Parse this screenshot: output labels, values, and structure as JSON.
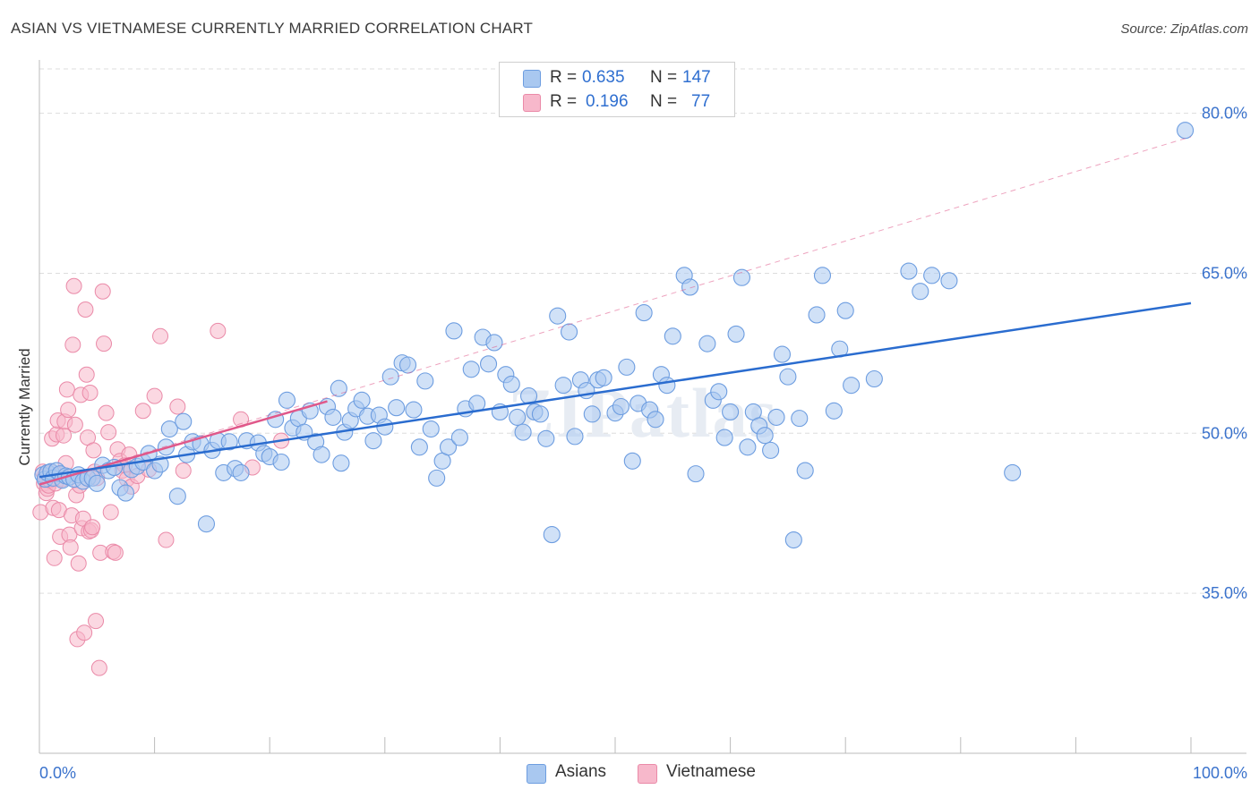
{
  "title": "ASIAN VS VIETNAMESE CURRENTLY MARRIED CORRELATION CHART",
  "source": "Source: ZipAtlas.com",
  "watermark": "ZIPatlas",
  "legend_top": {
    "asians": {
      "r_label": "R =",
      "r_value": "0.635",
      "n_label": "N =",
      "n_value": "147"
    },
    "vietnamese": {
      "r_label": "R =",
      "r_value": "0.196",
      "n_label": "N =",
      "n_value": "77"
    }
  },
  "legend_bottom": {
    "asians": "Asians",
    "vietnamese": "Vietnamese"
  },
  "colors": {
    "asians_fill": "#a9c8f0",
    "asians_stroke": "#6d9de0",
    "asians_line": "#2a6ccf",
    "vietnamese_fill": "#f7b8cb",
    "vietnamese_stroke": "#ea8aa8",
    "vietnamese_line": "#e0588a",
    "axis_text": "#3a72cc",
    "grid": "#dddddd"
  },
  "chart_data": {
    "type": "scatter",
    "title": "ASIAN VS VIETNAMESE CURRENTLY MARRIED CORRELATION CHART",
    "xlabel": "",
    "ylabel": "Currently Married",
    "xlim": [
      0,
      100
    ],
    "ylim": [
      20,
      85
    ],
    "x_tick_labels": [
      "0.0%",
      "100.0%"
    ],
    "y_ticks": [
      35,
      50,
      65,
      80
    ],
    "y_tick_labels": [
      "35.0%",
      "50.0%",
      "65.0%",
      "80.0%"
    ],
    "grid": true,
    "legend_position": "top-center",
    "series": [
      {
        "name": "Asians",
        "r": 0.635,
        "n": 147,
        "trend": {
          "x": [
            0,
            100
          ],
          "y": [
            45.9,
            62.2
          ]
        },
        "points": [
          [
            0.3,
            46.1
          ],
          [
            0.5,
            45.7
          ],
          [
            0.7,
            46.3
          ],
          [
            1.0,
            46.4
          ],
          [
            1.2,
            45.8
          ],
          [
            1.5,
            46.5
          ],
          [
            1.8,
            46.2
          ],
          [
            2.0,
            45.6
          ],
          [
            2.3,
            46.0
          ],
          [
            2.6,
            45.9
          ],
          [
            3.0,
            45.7
          ],
          [
            3.4,
            46.1
          ],
          [
            3.8,
            45.5
          ],
          [
            4.2,
            45.8
          ],
          [
            4.6,
            45.8
          ],
          [
            5.0,
            45.3
          ],
          [
            5.5,
            47.0
          ],
          [
            6.0,
            46.5
          ],
          [
            6.5,
            46.8
          ],
          [
            7.0,
            44.9
          ],
          [
            7.5,
            44.4
          ],
          [
            8.0,
            46.6
          ],
          [
            8.5,
            46.9
          ],
          [
            9.0,
            47.3
          ],
          [
            9.5,
            48.1
          ],
          [
            10.0,
            46.5
          ],
          [
            10.5,
            47.1
          ],
          [
            11.0,
            48.7
          ],
          [
            11.3,
            50.4
          ],
          [
            12.0,
            44.1
          ],
          [
            12.5,
            51.1
          ],
          [
            12.8,
            48.0
          ],
          [
            13.3,
            49.2
          ],
          [
            14.0,
            49.0
          ],
          [
            14.5,
            41.5
          ],
          [
            15.0,
            48.4
          ],
          [
            15.5,
            49.3
          ],
          [
            16.0,
            46.3
          ],
          [
            16.5,
            49.2
          ],
          [
            17.0,
            46.7
          ],
          [
            17.5,
            46.3
          ],
          [
            18.0,
            49.3
          ],
          [
            19.0,
            49.1
          ],
          [
            19.5,
            48.1
          ],
          [
            20.0,
            47.8
          ],
          [
            20.5,
            51.3
          ],
          [
            21.0,
            47.3
          ],
          [
            21.5,
            53.1
          ],
          [
            22.0,
            50.5
          ],
          [
            22.5,
            51.4
          ],
          [
            23.0,
            50.1
          ],
          [
            23.5,
            52.1
          ],
          [
            24.0,
            49.2
          ],
          [
            24.5,
            48.0
          ],
          [
            25.0,
            52.5
          ],
          [
            25.5,
            51.5
          ],
          [
            26.0,
            54.2
          ],
          [
            26.2,
            47.2
          ],
          [
            26.5,
            50.1
          ],
          [
            27.0,
            51.2
          ],
          [
            27.5,
            52.3
          ],
          [
            28.0,
            53.1
          ],
          [
            28.5,
            51.6
          ],
          [
            29.0,
            49.3
          ],
          [
            29.5,
            51.7
          ],
          [
            30.0,
            50.6
          ],
          [
            30.5,
            55.3
          ],
          [
            31.0,
            52.4
          ],
          [
            31.5,
            56.6
          ],
          [
            32.0,
            56.4
          ],
          [
            32.5,
            52.2
          ],
          [
            33.0,
            48.7
          ],
          [
            33.5,
            54.9
          ],
          [
            34.0,
            50.4
          ],
          [
            34.5,
            45.8
          ],
          [
            35.0,
            47.4
          ],
          [
            35.5,
            48.7
          ],
          [
            36.0,
            59.6
          ],
          [
            36.5,
            49.6
          ],
          [
            37.0,
            52.3
          ],
          [
            37.5,
            56.0
          ],
          [
            38.0,
            52.8
          ],
          [
            38.5,
            59.0
          ],
          [
            39.0,
            56.5
          ],
          [
            39.5,
            58.5
          ],
          [
            40.0,
            52.0
          ],
          [
            40.5,
            55.5
          ],
          [
            41.0,
            54.6
          ],
          [
            41.5,
            51.5
          ],
          [
            42.0,
            50.1
          ],
          [
            42.5,
            53.5
          ],
          [
            43.0,
            52.0
          ],
          [
            43.5,
            51.8
          ],
          [
            44.0,
            49.5
          ],
          [
            44.5,
            40.5
          ],
          [
            45.0,
            61.0
          ],
          [
            45.5,
            54.5
          ],
          [
            46.0,
            59.5
          ],
          [
            46.5,
            49.7
          ],
          [
            47.0,
            55.0
          ],
          [
            47.5,
            54.0
          ],
          [
            48.0,
            51.8
          ],
          [
            48.5,
            55.0
          ],
          [
            49.0,
            55.2
          ],
          [
            50.0,
            51.9
          ],
          [
            50.5,
            52.5
          ],
          [
            51.0,
            56.2
          ],
          [
            51.5,
            47.4
          ],
          [
            52.0,
            52.8
          ],
          [
            52.5,
            61.3
          ],
          [
            53.0,
            52.2
          ],
          [
            53.5,
            51.3
          ],
          [
            54.0,
            55.5
          ],
          [
            54.5,
            54.5
          ],
          [
            55.0,
            59.1
          ],
          [
            56.0,
            64.8
          ],
          [
            56.5,
            63.7
          ],
          [
            57.0,
            46.2
          ],
          [
            58.0,
            58.4
          ],
          [
            58.5,
            53.1
          ],
          [
            59.0,
            53.9
          ],
          [
            59.5,
            49.6
          ],
          [
            60.0,
            52.0
          ],
          [
            60.5,
            59.3
          ],
          [
            61.0,
            64.6
          ],
          [
            61.5,
            48.7
          ],
          [
            62.0,
            52.0
          ],
          [
            62.5,
            50.7
          ],
          [
            63.0,
            49.8
          ],
          [
            63.5,
            48.4
          ],
          [
            64.0,
            51.5
          ],
          [
            64.5,
            57.4
          ],
          [
            65.0,
            55.3
          ],
          [
            65.5,
            40.0
          ],
          [
            66.0,
            51.4
          ],
          [
            66.5,
            46.5
          ],
          [
            67.5,
            61.1
          ],
          [
            68.0,
            64.8
          ],
          [
            69.0,
            52.1
          ],
          [
            69.5,
            57.9
          ],
          [
            70.0,
            61.5
          ],
          [
            70.5,
            54.5
          ],
          [
            72.5,
            55.1
          ],
          [
            75.5,
            65.2
          ],
          [
            76.5,
            63.3
          ],
          [
            77.5,
            64.8
          ],
          [
            79.0,
            64.3
          ],
          [
            84.5,
            46.3
          ],
          [
            99.5,
            78.4
          ]
        ]
      },
      {
        "name": "Vietnamese",
        "r": 0.196,
        "n": 77,
        "trend": {
          "x": [
            0,
            25
          ],
          "y": [
            45.2,
            53.0
          ]
        },
        "dashed_extension": {
          "x": [
            0,
            100
          ],
          "y": [
            45.2,
            77.8
          ]
        },
        "points": [
          [
            0.1,
            42.6
          ],
          [
            0.3,
            46.4
          ],
          [
            0.4,
            45.3
          ],
          [
            0.5,
            46.0
          ],
          [
            0.6,
            44.4
          ],
          [
            0.7,
            44.8
          ],
          [
            0.8,
            45.1
          ],
          [
            0.9,
            45.6
          ],
          [
            1.0,
            46.4
          ],
          [
            1.1,
            49.5
          ],
          [
            1.2,
            43.0
          ],
          [
            1.3,
            38.3
          ],
          [
            1.4,
            45.3
          ],
          [
            1.5,
            49.9
          ],
          [
            1.6,
            51.2
          ],
          [
            1.7,
            42.8
          ],
          [
            1.8,
            40.3
          ],
          [
            1.9,
            46.2
          ],
          [
            2.0,
            45.7
          ],
          [
            2.1,
            49.8
          ],
          [
            2.2,
            51.1
          ],
          [
            2.3,
            47.2
          ],
          [
            2.4,
            54.1
          ],
          [
            2.5,
            52.2
          ],
          [
            2.6,
            40.5
          ],
          [
            2.7,
            39.3
          ],
          [
            2.8,
            42.3
          ],
          [
            2.9,
            58.3
          ],
          [
            3.0,
            63.8
          ],
          [
            3.1,
            50.8
          ],
          [
            3.2,
            44.2
          ],
          [
            3.3,
            30.7
          ],
          [
            3.4,
            37.8
          ],
          [
            3.5,
            45.1
          ],
          [
            3.6,
            53.6
          ],
          [
            3.7,
            41.1
          ],
          [
            3.8,
            42.0
          ],
          [
            3.9,
            31.3
          ],
          [
            4.0,
            61.6
          ],
          [
            4.1,
            55.5
          ],
          [
            4.2,
            49.6
          ],
          [
            4.3,
            40.8
          ],
          [
            4.4,
            53.8
          ],
          [
            4.5,
            40.9
          ],
          [
            4.6,
            41.2
          ],
          [
            4.7,
            48.4
          ],
          [
            4.8,
            46.4
          ],
          [
            4.9,
            32.4
          ],
          [
            5.0,
            45.8
          ],
          [
            5.2,
            28.0
          ],
          [
            5.3,
            38.8
          ],
          [
            5.5,
            63.3
          ],
          [
            5.6,
            58.4
          ],
          [
            5.8,
            51.9
          ],
          [
            6.0,
            50.1
          ],
          [
            6.2,
            42.6
          ],
          [
            6.4,
            38.9
          ],
          [
            6.6,
            38.8
          ],
          [
            6.8,
            48.5
          ],
          [
            7.0,
            47.4
          ],
          [
            7.2,
            46.5
          ],
          [
            7.4,
            47.0
          ],
          [
            7.6,
            45.7
          ],
          [
            7.8,
            48.0
          ],
          [
            8.0,
            45.0
          ],
          [
            8.5,
            46.0
          ],
          [
            9.0,
            52.1
          ],
          [
            9.5,
            46.6
          ],
          [
            10.0,
            53.5
          ],
          [
            10.5,
            59.1
          ],
          [
            11.0,
            40.0
          ],
          [
            12.0,
            52.5
          ],
          [
            12.5,
            46.5
          ],
          [
            15.5,
            59.6
          ],
          [
            17.5,
            51.3
          ],
          [
            18.5,
            46.8
          ],
          [
            21.0,
            49.3
          ]
        ]
      }
    ]
  }
}
